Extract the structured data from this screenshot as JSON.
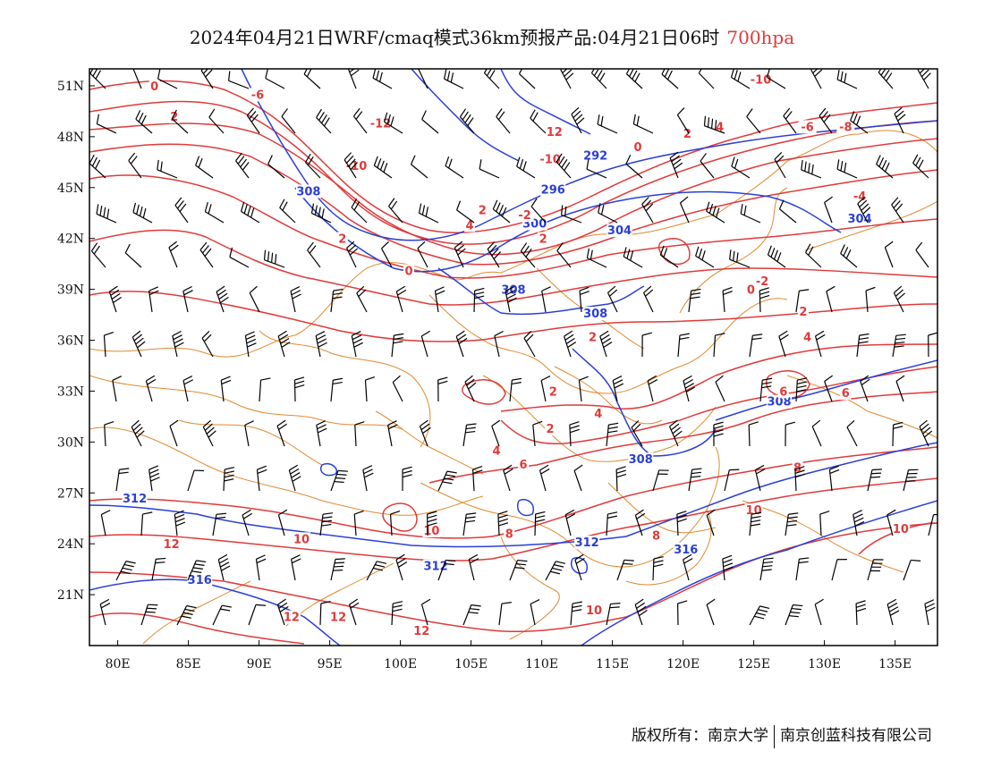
{
  "title": {
    "main": "2024年04月21日WRF/cmaq模式36km预报产品:04月21日06时",
    "level": "700hpa"
  },
  "colors": {
    "height_contour": "#2a3fd6",
    "temp_contour": "#e03a3a",
    "border": "#e08a30",
    "barb": "#000000"
  },
  "axes": {
    "lon_range": [
      78,
      138
    ],
    "lat_range": [
      18,
      52
    ],
    "lon_ticks": [
      "80E",
      "85E",
      "90E",
      "95E",
      "100E",
      "105E",
      "110E",
      "115E",
      "120E",
      "125E",
      "130E",
      "135E"
    ],
    "lat_ticks": [
      "51N",
      "48N",
      "45N",
      "42N",
      "39N",
      "36N",
      "33N",
      "30N",
      "27N",
      "24N",
      "21N"
    ]
  },
  "height_labels": [
    {
      "text": "292",
      "lon": 113.8,
      "lat": 46.8
    },
    {
      "text": "296",
      "lon": 110.8,
      "lat": 44.8
    },
    {
      "text": "300",
      "lon": 109.5,
      "lat": 42.8
    },
    {
      "text": "304",
      "lon": 115.5,
      "lat": 42.4
    },
    {
      "text": "304",
      "lon": 132.5,
      "lat": 43.1
    },
    {
      "text": "308",
      "lon": 93.5,
      "lat": 44.7
    },
    {
      "text": "308",
      "lon": 108.0,
      "lat": 38.9
    },
    {
      "text": "308",
      "lon": 113.8,
      "lat": 37.5
    },
    {
      "text": "308",
      "lon": 126.8,
      "lat": 32.3
    },
    {
      "text": "308",
      "lon": 117.0,
      "lat": 28.9
    },
    {
      "text": "312",
      "lon": 81.2,
      "lat": 26.6
    },
    {
      "text": "312",
      "lon": 102.5,
      "lat": 22.6
    },
    {
      "text": "312",
      "lon": 113.2,
      "lat": 24.0
    },
    {
      "text": "316",
      "lon": 85.8,
      "lat": 21.8
    },
    {
      "text": "316",
      "lon": 120.2,
      "lat": 23.6
    }
  ],
  "temp_labels": [
    {
      "text": "0",
      "lon": 82.6,
      "lat": 50.9
    },
    {
      "text": "-6",
      "lon": 89.9,
      "lat": 50.4
    },
    {
      "text": "2",
      "lon": 84.0,
      "lat": 49.1
    },
    {
      "text": "-12",
      "lon": 98.6,
      "lat": 48.7
    },
    {
      "text": "12",
      "lon": 110.9,
      "lat": 48.2
    },
    {
      "text": "-10",
      "lon": 110.6,
      "lat": 46.6
    },
    {
      "text": "-10",
      "lon": 96.9,
      "lat": 46.2
    },
    {
      "text": "0",
      "lon": 116.8,
      "lat": 47.3
    },
    {
      "text": "2",
      "lon": 120.3,
      "lat": 48.1
    },
    {
      "text": "4",
      "lon": 122.6,
      "lat": 48.5
    },
    {
      "text": "-10",
      "lon": 125.5,
      "lat": 51.3
    },
    {
      "text": "-6",
      "lon": 128.8,
      "lat": 48.5
    },
    {
      "text": "-8",
      "lon": 131.5,
      "lat": 48.5
    },
    {
      "text": "-4",
      "lon": 132.5,
      "lat": 44.4
    },
    {
      "text": "2",
      "lon": 105.8,
      "lat": 43.6
    },
    {
      "text": "4",
      "lon": 104.9,
      "lat": 42.7
    },
    {
      "text": "-2",
      "lon": 108.8,
      "lat": 43.3
    },
    {
      "text": "2",
      "lon": 95.9,
      "lat": 41.9
    },
    {
      "text": "0",
      "lon": 100.6,
      "lat": 40.0
    },
    {
      "text": "2",
      "lon": 110.1,
      "lat": 41.9
    },
    {
      "text": "-2",
      "lon": 125.6,
      "lat": 39.4
    },
    {
      "text": "0",
      "lon": 124.8,
      "lat": 38.9
    },
    {
      "text": "2",
      "lon": 128.5,
      "lat": 37.6
    },
    {
      "text": "2",
      "lon": 113.6,
      "lat": 36.1
    },
    {
      "text": "4",
      "lon": 128.8,
      "lat": 36.1
    },
    {
      "text": "6",
      "lon": 127.1,
      "lat": 32.9
    },
    {
      "text": "6",
      "lon": 131.5,
      "lat": 32.8
    },
    {
      "text": "2",
      "lon": 110.8,
      "lat": 32.9
    },
    {
      "text": "4",
      "lon": 114.0,
      "lat": 31.6
    },
    {
      "text": "2",
      "lon": 110.6,
      "lat": 30.7
    },
    {
      "text": "4",
      "lon": 106.8,
      "lat": 29.4
    },
    {
      "text": "6",
      "lon": 108.7,
      "lat": 28.6
    },
    {
      "text": "8",
      "lon": 128.1,
      "lat": 28.4
    },
    {
      "text": "10",
      "lon": 125.0,
      "lat": 25.9
    },
    {
      "text": "10",
      "lon": 135.4,
      "lat": 24.8
    },
    {
      "text": "8",
      "lon": 118.1,
      "lat": 24.4
    },
    {
      "text": "8",
      "lon": 107.7,
      "lat": 24.5
    },
    {
      "text": "10",
      "lon": 102.2,
      "lat": 24.7
    },
    {
      "text": "10",
      "lon": 93.0,
      "lat": 24.2
    },
    {
      "text": "12",
      "lon": 83.8,
      "lat": 23.9
    },
    {
      "text": "12",
      "lon": 95.6,
      "lat": 19.6
    },
    {
      "text": "12",
      "lon": 92.3,
      "lat": 19.6
    },
    {
      "text": "12",
      "lon": 101.5,
      "lat": 18.8
    },
    {
      "text": "10",
      "lon": 113.7,
      "lat": 20.0
    }
  ],
  "footer": {
    "left": "版权所有：南京大学",
    "right": "南京创蓝科技有限公司"
  }
}
